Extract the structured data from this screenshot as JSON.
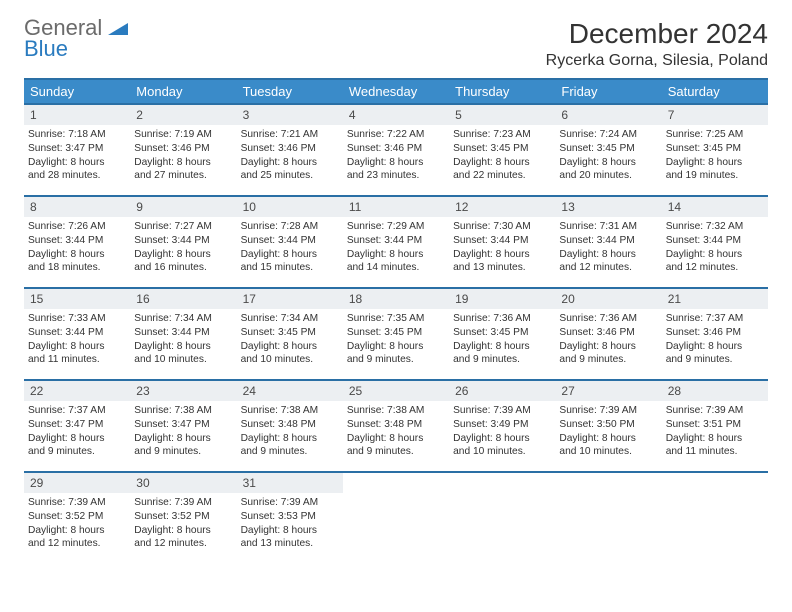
{
  "brand": {
    "line1": "General",
    "line2": "Blue"
  },
  "colors": {
    "header_bg": "#3a8bc9",
    "header_border": "#2a6fa5",
    "daynum_bg": "#eceff2",
    "text": "#333333",
    "brand_gray": "#6b6b6b",
    "brand_blue": "#2a7bbf"
  },
  "title": "December 2024",
  "location": "Rycerka Gorna, Silesia, Poland",
  "weekdays": [
    "Sunday",
    "Monday",
    "Tuesday",
    "Wednesday",
    "Thursday",
    "Friday",
    "Saturday"
  ],
  "weeks": [
    [
      {
        "n": "1",
        "sunrise": "Sunrise: 7:18 AM",
        "sunset": "Sunset: 3:47 PM",
        "day1": "Daylight: 8 hours",
        "day2": "and 28 minutes."
      },
      {
        "n": "2",
        "sunrise": "Sunrise: 7:19 AM",
        "sunset": "Sunset: 3:46 PM",
        "day1": "Daylight: 8 hours",
        "day2": "and 27 minutes."
      },
      {
        "n": "3",
        "sunrise": "Sunrise: 7:21 AM",
        "sunset": "Sunset: 3:46 PM",
        "day1": "Daylight: 8 hours",
        "day2": "and 25 minutes."
      },
      {
        "n": "4",
        "sunrise": "Sunrise: 7:22 AM",
        "sunset": "Sunset: 3:46 PM",
        "day1": "Daylight: 8 hours",
        "day2": "and 23 minutes."
      },
      {
        "n": "5",
        "sunrise": "Sunrise: 7:23 AM",
        "sunset": "Sunset: 3:45 PM",
        "day1": "Daylight: 8 hours",
        "day2": "and 22 minutes."
      },
      {
        "n": "6",
        "sunrise": "Sunrise: 7:24 AM",
        "sunset": "Sunset: 3:45 PM",
        "day1": "Daylight: 8 hours",
        "day2": "and 20 minutes."
      },
      {
        "n": "7",
        "sunrise": "Sunrise: 7:25 AM",
        "sunset": "Sunset: 3:45 PM",
        "day1": "Daylight: 8 hours",
        "day2": "and 19 minutes."
      }
    ],
    [
      {
        "n": "8",
        "sunrise": "Sunrise: 7:26 AM",
        "sunset": "Sunset: 3:44 PM",
        "day1": "Daylight: 8 hours",
        "day2": "and 18 minutes."
      },
      {
        "n": "9",
        "sunrise": "Sunrise: 7:27 AM",
        "sunset": "Sunset: 3:44 PM",
        "day1": "Daylight: 8 hours",
        "day2": "and 16 minutes."
      },
      {
        "n": "10",
        "sunrise": "Sunrise: 7:28 AM",
        "sunset": "Sunset: 3:44 PM",
        "day1": "Daylight: 8 hours",
        "day2": "and 15 minutes."
      },
      {
        "n": "11",
        "sunrise": "Sunrise: 7:29 AM",
        "sunset": "Sunset: 3:44 PM",
        "day1": "Daylight: 8 hours",
        "day2": "and 14 minutes."
      },
      {
        "n": "12",
        "sunrise": "Sunrise: 7:30 AM",
        "sunset": "Sunset: 3:44 PM",
        "day1": "Daylight: 8 hours",
        "day2": "and 13 minutes."
      },
      {
        "n": "13",
        "sunrise": "Sunrise: 7:31 AM",
        "sunset": "Sunset: 3:44 PM",
        "day1": "Daylight: 8 hours",
        "day2": "and 12 minutes."
      },
      {
        "n": "14",
        "sunrise": "Sunrise: 7:32 AM",
        "sunset": "Sunset: 3:44 PM",
        "day1": "Daylight: 8 hours",
        "day2": "and 12 minutes."
      }
    ],
    [
      {
        "n": "15",
        "sunrise": "Sunrise: 7:33 AM",
        "sunset": "Sunset: 3:44 PM",
        "day1": "Daylight: 8 hours",
        "day2": "and 11 minutes."
      },
      {
        "n": "16",
        "sunrise": "Sunrise: 7:34 AM",
        "sunset": "Sunset: 3:44 PM",
        "day1": "Daylight: 8 hours",
        "day2": "and 10 minutes."
      },
      {
        "n": "17",
        "sunrise": "Sunrise: 7:34 AM",
        "sunset": "Sunset: 3:45 PM",
        "day1": "Daylight: 8 hours",
        "day2": "and 10 minutes."
      },
      {
        "n": "18",
        "sunrise": "Sunrise: 7:35 AM",
        "sunset": "Sunset: 3:45 PM",
        "day1": "Daylight: 8 hours",
        "day2": "and 9 minutes."
      },
      {
        "n": "19",
        "sunrise": "Sunrise: 7:36 AM",
        "sunset": "Sunset: 3:45 PM",
        "day1": "Daylight: 8 hours",
        "day2": "and 9 minutes."
      },
      {
        "n": "20",
        "sunrise": "Sunrise: 7:36 AM",
        "sunset": "Sunset: 3:46 PM",
        "day1": "Daylight: 8 hours",
        "day2": "and 9 minutes."
      },
      {
        "n": "21",
        "sunrise": "Sunrise: 7:37 AM",
        "sunset": "Sunset: 3:46 PM",
        "day1": "Daylight: 8 hours",
        "day2": "and 9 minutes."
      }
    ],
    [
      {
        "n": "22",
        "sunrise": "Sunrise: 7:37 AM",
        "sunset": "Sunset: 3:47 PM",
        "day1": "Daylight: 8 hours",
        "day2": "and 9 minutes."
      },
      {
        "n": "23",
        "sunrise": "Sunrise: 7:38 AM",
        "sunset": "Sunset: 3:47 PM",
        "day1": "Daylight: 8 hours",
        "day2": "and 9 minutes."
      },
      {
        "n": "24",
        "sunrise": "Sunrise: 7:38 AM",
        "sunset": "Sunset: 3:48 PM",
        "day1": "Daylight: 8 hours",
        "day2": "and 9 minutes."
      },
      {
        "n": "25",
        "sunrise": "Sunrise: 7:38 AM",
        "sunset": "Sunset: 3:48 PM",
        "day1": "Daylight: 8 hours",
        "day2": "and 9 minutes."
      },
      {
        "n": "26",
        "sunrise": "Sunrise: 7:39 AM",
        "sunset": "Sunset: 3:49 PM",
        "day1": "Daylight: 8 hours",
        "day2": "and 10 minutes."
      },
      {
        "n": "27",
        "sunrise": "Sunrise: 7:39 AM",
        "sunset": "Sunset: 3:50 PM",
        "day1": "Daylight: 8 hours",
        "day2": "and 10 minutes."
      },
      {
        "n": "28",
        "sunrise": "Sunrise: 7:39 AM",
        "sunset": "Sunset: 3:51 PM",
        "day1": "Daylight: 8 hours",
        "day2": "and 11 minutes."
      }
    ],
    [
      {
        "n": "29",
        "sunrise": "Sunrise: 7:39 AM",
        "sunset": "Sunset: 3:52 PM",
        "day1": "Daylight: 8 hours",
        "day2": "and 12 minutes."
      },
      {
        "n": "30",
        "sunrise": "Sunrise: 7:39 AM",
        "sunset": "Sunset: 3:52 PM",
        "day1": "Daylight: 8 hours",
        "day2": "and 12 minutes."
      },
      {
        "n": "31",
        "sunrise": "Sunrise: 7:39 AM",
        "sunset": "Sunset: 3:53 PM",
        "day1": "Daylight: 8 hours",
        "day2": "and 13 minutes."
      },
      {
        "empty": true
      },
      {
        "empty": true
      },
      {
        "empty": true
      },
      {
        "empty": true
      }
    ]
  ]
}
